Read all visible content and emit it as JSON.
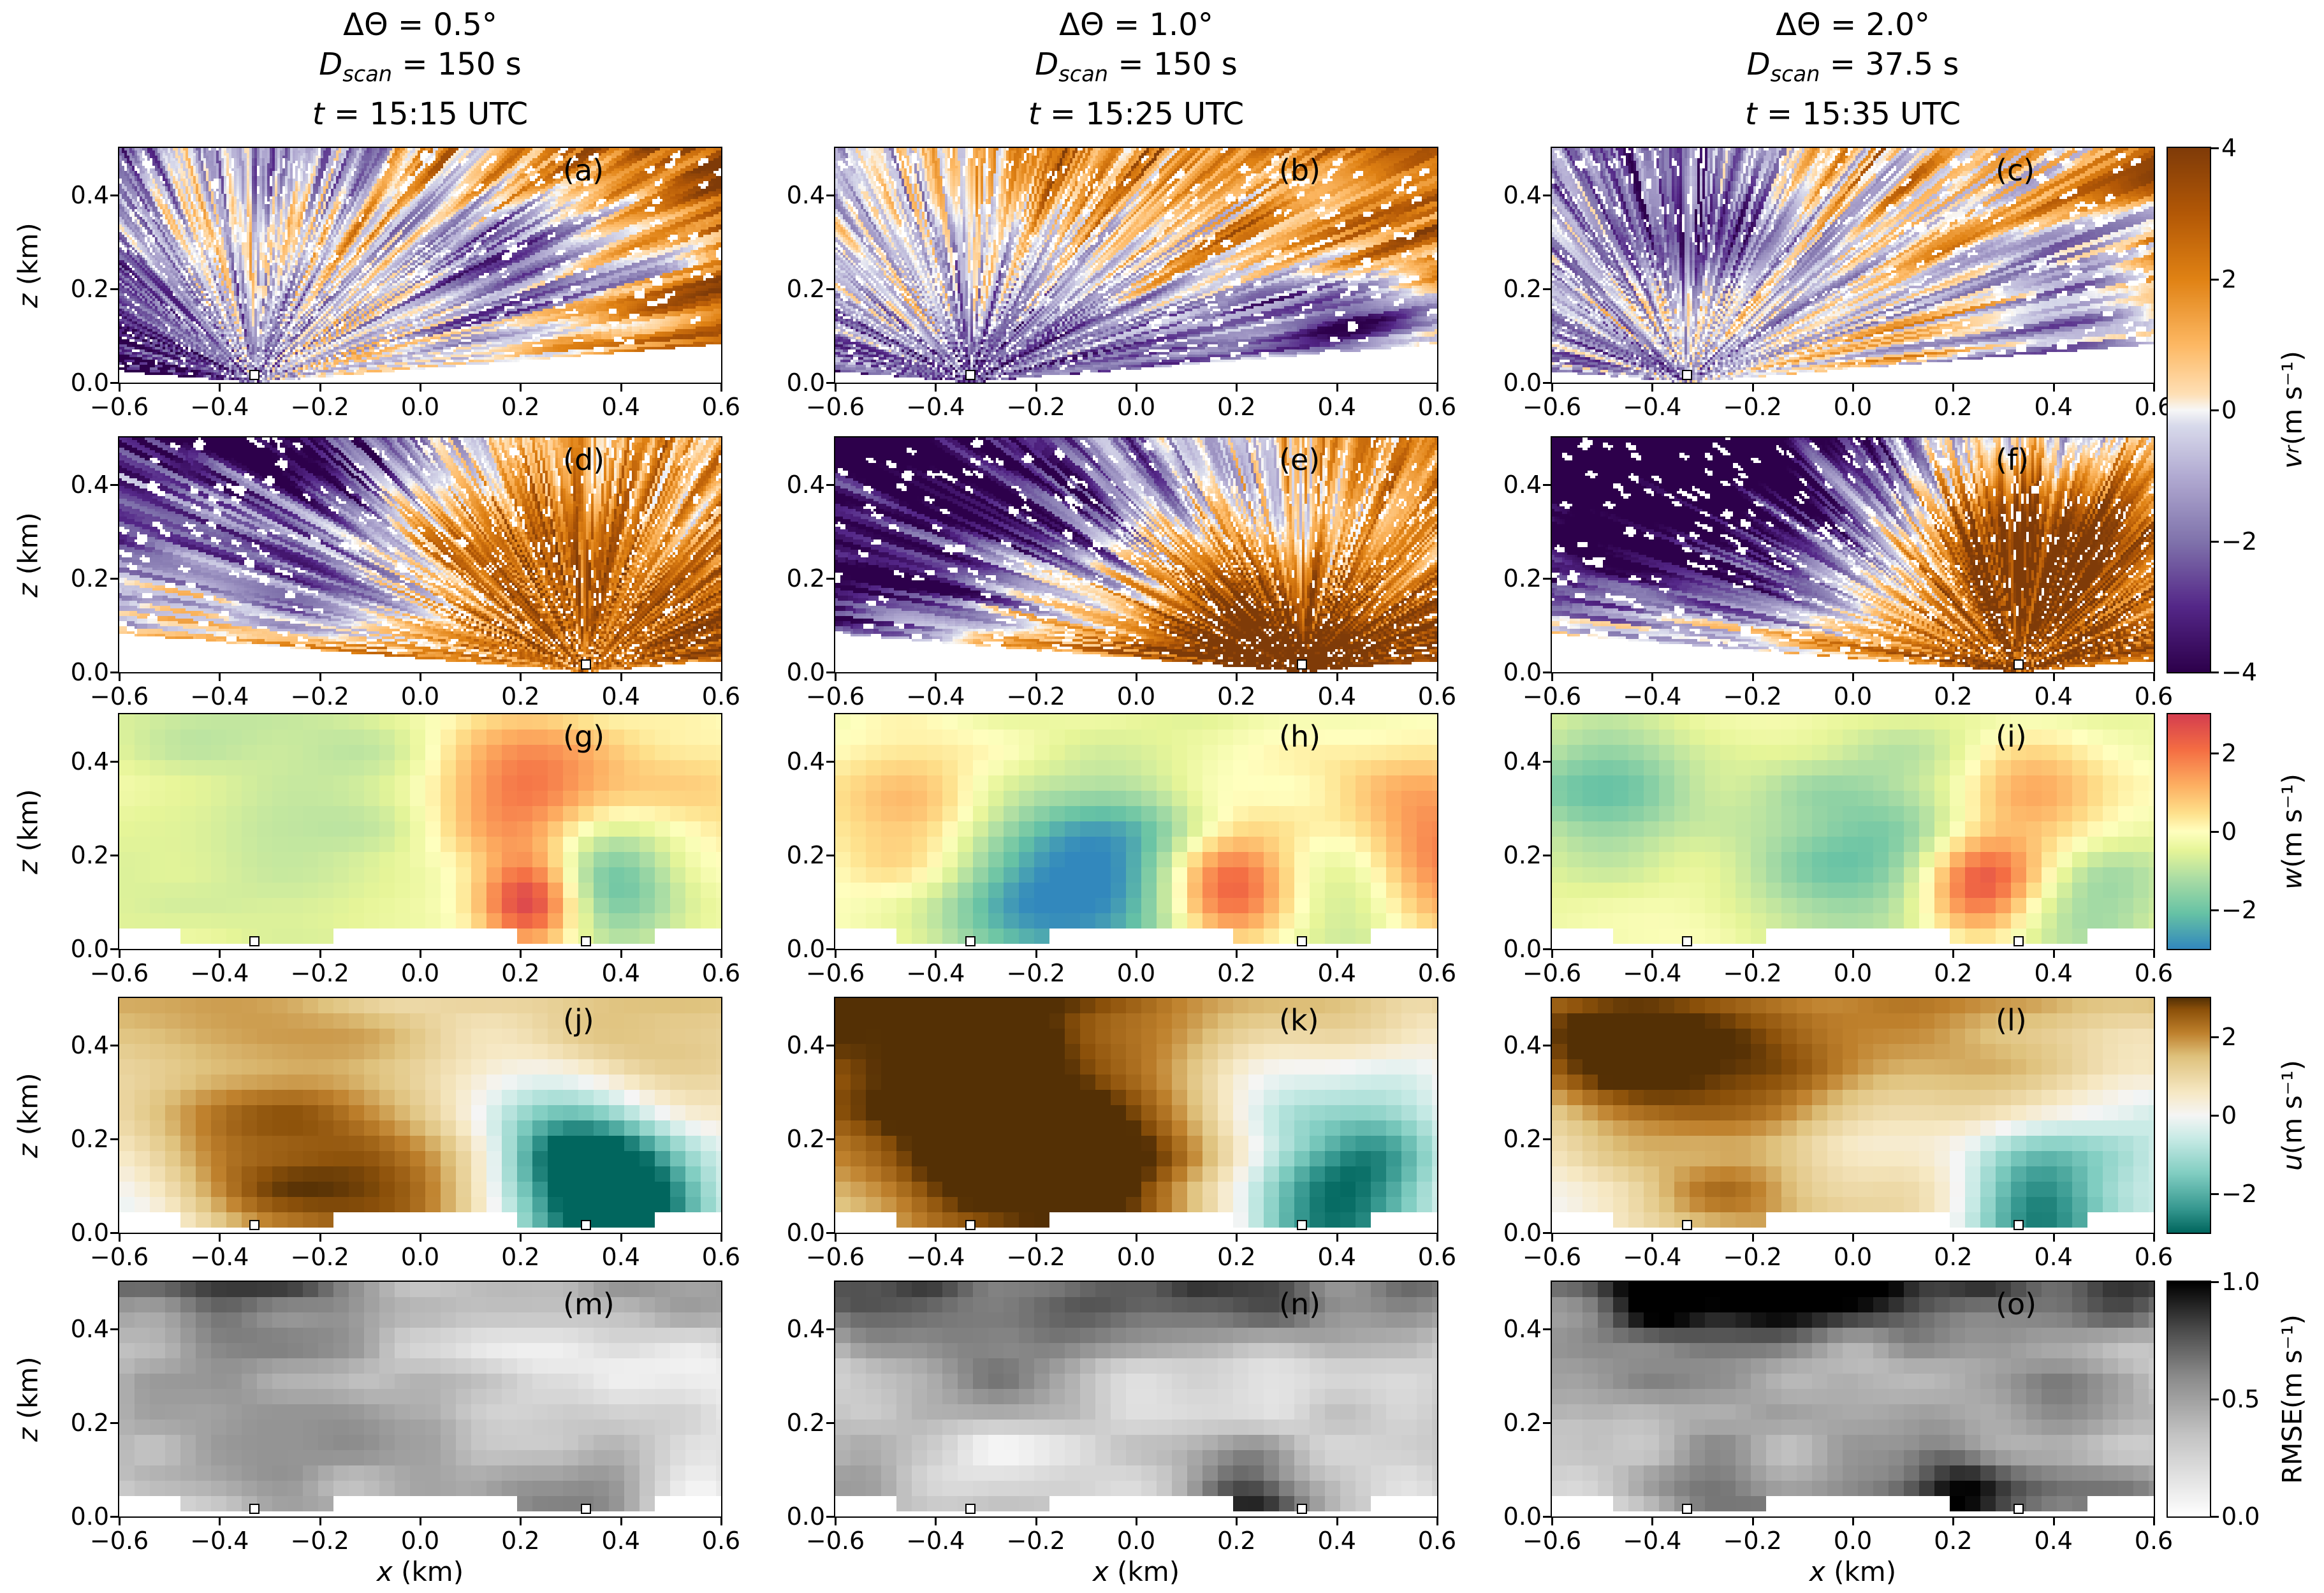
{
  "figure": {
    "background": "#ffffff"
  },
  "labels": {
    "d_var": "D",
    "d_sub": "scan",
    "t_var": "t",
    "x_var": "x",
    "x_unit": " (km)",
    "z_var": "z",
    "z_unit": " (km)"
  },
  "chart_data": {
    "type": "heatmap",
    "description": "5x3 grid of radar RHI cross-section heatmaps: rows show radial velocity from radar 1, radial velocity from radar 2, retrieved w, retrieved u, and RMSE; columns show three scan configurations.",
    "x_axis": {
      "label": "x (km)",
      "range": [
        -0.6,
        0.6
      ],
      "ticks": [
        -0.6,
        -0.4,
        -0.2,
        0.0,
        0.2,
        0.4,
        0.6
      ],
      "ticklabels": [
        "−0.6",
        "−0.4",
        "−0.2",
        "0.0",
        "0.2",
        "0.4",
        "0.6"
      ]
    },
    "y_axis": {
      "label": "z (km)",
      "range": [
        0,
        0.5
      ],
      "ticks": [
        0.0,
        0.2,
        0.4
      ],
      "ticklabels": [
        "0.0",
        "0.2",
        "0.4"
      ]
    },
    "columns": [
      {
        "delta_theta": "ΔΘ = 0.5°",
        "d_scan": "150 s",
        "d_scan_rest": " = 150 s",
        "time": "15:15 UTC",
        "time_rest": " = 15:15 UTC"
      },
      {
        "delta_theta": "ΔΘ = 1.0°",
        "d_scan": "150 s",
        "d_scan_rest": " = 150 s",
        "time": "15:25 UTC",
        "time_rest": " = 15:25 UTC"
      },
      {
        "delta_theta": "ΔΘ = 2.0°",
        "d_scan": "37.5 s",
        "d_scan_rest": " = 37.5 s",
        "time": "15:35 UTC",
        "time_rest": " = 15:35 UTC"
      }
    ],
    "rows": [
      {
        "variable": "v_r",
        "kind": "fan",
        "colormap": "PuOr_r",
        "range": [
          -4,
          4
        ],
        "radars": [
          -0.33
        ]
      },
      {
        "variable": "v_r",
        "kind": "fan",
        "colormap": "PuOr_r",
        "range": [
          -4,
          4
        ],
        "radars": [
          0.33
        ]
      },
      {
        "variable": "w",
        "kind": "grid",
        "colormap": "Spectral_r",
        "range": [
          -3,
          3
        ],
        "radars": [
          -0.33,
          0.33
        ]
      },
      {
        "variable": "u",
        "kind": "grid",
        "colormap": "BrBG_r",
        "range": [
          -3,
          3
        ],
        "radars": [
          -0.33,
          0.33
        ]
      },
      {
        "variable": "RMSE",
        "kind": "grid",
        "colormap": "Greys",
        "range": [
          0,
          1
        ],
        "radars": [
          -0.33,
          0.33
        ]
      }
    ],
    "panels": [
      {
        "letter": "(a)",
        "row": 0,
        "col": 0,
        "appearance": {
          "seed": 11,
          "trend": [
            2.2,
            0.9
          ],
          "bg": 0,
          "namp": 0,
          "tb": 0,
          "blobs": [
            [
              0.12,
              0.2,
              0.12,
              -2.0
            ]
          ]
        }
      },
      {
        "letter": "(b)",
        "row": 0,
        "col": 1,
        "appearance": {
          "seed": 22,
          "trend": [
            2.0,
            0.9
          ],
          "bg": 0,
          "namp": 0,
          "tb": 0,
          "blobs": [
            [
              0.42,
              0.07,
              0.13,
              -3.5
            ]
          ]
        }
      },
      {
        "letter": "(c)",
        "row": 0,
        "col": 2,
        "appearance": {
          "seed": 33,
          "trend": [
            1.6,
            0.3
          ],
          "bg": 0,
          "namp": 0,
          "tb": 0,
          "blobs": [
            [
              -0.35,
              0.42,
              0.16,
              -2.6
            ],
            [
              0.45,
              0.12,
              0.12,
              -2.2
            ]
          ]
        }
      },
      {
        "letter": "(d)",
        "row": 1,
        "col": 0,
        "appearance": {
          "seed": 44,
          "trend": [
            1.8,
            -0.7
          ],
          "bg": 0,
          "namp": 0,
          "tb": 0,
          "blobs": [
            [
              0.18,
              0.22,
              0.16,
              2.2
            ],
            [
              -0.4,
              0.38,
              0.22,
              -1.6
            ]
          ]
        }
      },
      {
        "letter": "(e)",
        "row": 1,
        "col": 1,
        "appearance": {
          "seed": 55,
          "trend": [
            2.2,
            -1.1
          ],
          "bg": 0,
          "namp": 0,
          "tb": 0,
          "blobs": [
            [
              0.2,
              0.12,
              0.16,
              2.4
            ],
            [
              -0.35,
              0.4,
              0.28,
              -1.8
            ]
          ]
        }
      },
      {
        "letter": "(f)",
        "row": 1,
        "col": 2,
        "appearance": {
          "seed": 66,
          "trend": [
            2.4,
            -1.4
          ],
          "bg": 0,
          "namp": 0,
          "tb": 0,
          "blobs": [
            [
              0.33,
              0.28,
              0.16,
              2.2
            ],
            [
              -0.3,
              0.42,
              0.28,
              -2.2
            ]
          ]
        }
      },
      {
        "letter": "(g)",
        "row": 2,
        "col": 0,
        "appearance": {
          "seed": 77,
          "trend": [
            0,
            0
          ],
          "bg": -0.25,
          "namp": 0.7,
          "tb": 0,
          "blobs": [
            [
              0.2,
              0.34,
              0.13,
              2.4
            ],
            [
              0.22,
              0.1,
              0.07,
              3.2
            ],
            [
              0.38,
              0.14,
              0.1,
              -2.0
            ],
            [
              -0.3,
              0.25,
              0.3,
              -0.6
            ],
            [
              0.55,
              0.3,
              0.15,
              0.8
            ]
          ]
        }
      },
      {
        "letter": "(h)",
        "row": 2,
        "col": 1,
        "appearance": {
          "seed": 88,
          "trend": [
            0,
            0
          ],
          "bg": -0.2,
          "namp": 0.7,
          "tb": 0,
          "blobs": [
            [
              -0.05,
              0.17,
              0.14,
              -2.6
            ],
            [
              -0.25,
              0.1,
              0.12,
              -1.5
            ],
            [
              0.18,
              0.13,
              0.09,
              3.0
            ],
            [
              0.6,
              0.2,
              0.13,
              2.2
            ],
            [
              -0.45,
              0.27,
              0.1,
              1.3
            ],
            [
              0.45,
              0.12,
              0.1,
              -1.2
            ]
          ]
        }
      },
      {
        "letter": "(i)",
        "row": 2,
        "col": 2,
        "appearance": {
          "seed": 99,
          "trend": [
            0,
            0
          ],
          "bg": -0.15,
          "namp": 0.7,
          "tb": 0,
          "blobs": [
            [
              0.0,
              0.25,
              0.2,
              -2.0
            ],
            [
              0.25,
              0.13,
              0.08,
              3.2
            ],
            [
              0.35,
              0.32,
              0.1,
              1.6
            ],
            [
              -0.5,
              0.3,
              0.13,
              -1.6
            ],
            [
              0.5,
              0.1,
              0.09,
              -1.2
            ],
            [
              -0.15,
              0.45,
              0.2,
              0.6
            ]
          ]
        }
      },
      {
        "letter": "(j)",
        "row": 3,
        "col": 0,
        "appearance": {
          "seed": 111,
          "trend": [
            0,
            2.0
          ],
          "bg": -0.3,
          "namp": 1.0,
          "tb": 0,
          "blobs": [
            [
              -0.3,
              0.07,
              0.18,
              2.2
            ],
            [
              0.05,
              0.06,
              0.16,
              1.8
            ],
            [
              0.3,
              0.13,
              0.12,
              -3.2
            ],
            [
              0.42,
              0.05,
              0.1,
              -2.6
            ],
            [
              0.15,
              0.28,
              0.15,
              -1.4
            ],
            [
              -0.55,
              0.1,
              0.12,
              -0.8
            ]
          ]
        }
      },
      {
        "letter": "(k)",
        "row": 3,
        "col": 1,
        "appearance": {
          "seed": 122,
          "trend": [
            0,
            2.4
          ],
          "bg": 0.1,
          "namp": 1.1,
          "tb": 0,
          "blobs": [
            [
              -0.3,
              0.09,
              0.22,
              2.4
            ],
            [
              0.02,
              0.08,
              0.2,
              2.2
            ],
            [
              0.38,
              0.08,
              0.13,
              -3.8
            ],
            [
              0.52,
              0.2,
              0.1,
              -2.0
            ],
            [
              0.2,
              0.3,
              0.13,
              -1.6
            ],
            [
              0.6,
              0.45,
              0.12,
              -1.6
            ]
          ]
        }
      },
      {
        "letter": "(l)",
        "row": 3,
        "col": 2,
        "appearance": {
          "seed": 133,
          "trend": [
            0,
            2.2
          ],
          "bg": 0.0,
          "namp": 1.1,
          "tb": 0,
          "blobs": [
            [
              -0.2,
              0.08,
              0.2,
              2.2
            ],
            [
              0.18,
              0.06,
              0.14,
              1.8
            ],
            [
              0.35,
              0.07,
              0.11,
              -3.4
            ],
            [
              0.05,
              0.22,
              0.15,
              -1.4
            ],
            [
              0.6,
              0.3,
              0.13,
              -1.4
            ],
            [
              -0.45,
              0.45,
              0.15,
              0.8
            ]
          ]
        }
      },
      {
        "letter": "(m)",
        "row": 4,
        "col": 0,
        "appearance": {
          "seed": 144,
          "trend": [
            0,
            0
          ],
          "bg": 0.3,
          "namp": 0.5,
          "tb": 0.35,
          "blobs": [
            [
              0.25,
              0.05,
              0.1,
              0.35
            ],
            [
              0.4,
              0.15,
              0.12,
              0.2
            ]
          ]
        }
      },
      {
        "letter": "(n)",
        "row": 4,
        "col": 1,
        "appearance": {
          "seed": 155,
          "trend": [
            0,
            0
          ],
          "bg": 0.33,
          "namp": 0.5,
          "tb": 0.55,
          "blobs": [
            [
              0.2,
              0.05,
              0.09,
              0.5
            ],
            [
              -0.3,
              0.44,
              0.18,
              0.25
            ]
          ]
        }
      },
      {
        "letter": "(o)",
        "row": 4,
        "col": 2,
        "appearance": {
          "seed": 166,
          "trend": [
            0,
            0
          ],
          "bg": 0.36,
          "namp": 0.5,
          "tb": 0.7,
          "blobs": [
            [
              0.2,
              0.07,
              0.09,
              0.5
            ],
            [
              -0.3,
              0.44,
              0.2,
              0.3
            ],
            [
              0.45,
              0.25,
              0.12,
              0.25
            ]
          ]
        }
      }
    ],
    "colorbars": [
      {
        "id": "vr",
        "var": "v",
        "sub": "r",
        "italic": true,
        "unit": " (m s⁻¹)",
        "colormap": "PuOr_r",
        "range": [
          -4,
          4
        ],
        "ticks": [
          {
            "label": "4",
            "v": 4
          },
          {
            "label": "2",
            "v": 2
          },
          {
            "label": "0",
            "v": 0
          },
          {
            "label": "−2",
            "v": -2
          },
          {
            "label": "−4",
            "v": -4
          }
        ]
      },
      {
        "id": "w",
        "var": "w",
        "sub": "",
        "italic": true,
        "unit": " (m s⁻¹)",
        "colormap": "Spectral_r",
        "range": [
          -3,
          3
        ],
        "ticks": [
          {
            "label": "2",
            "v": 2
          },
          {
            "label": "0",
            "v": 0
          },
          {
            "label": "−2",
            "v": -2
          }
        ]
      },
      {
        "id": "u",
        "var": "u",
        "sub": "",
        "italic": true,
        "unit": " (m s⁻¹)",
        "colormap": "BrBG_r",
        "range": [
          -3,
          3
        ],
        "ticks": [
          {
            "label": "2",
            "v": 2
          },
          {
            "label": "0",
            "v": 0
          },
          {
            "label": "−2",
            "v": -2
          }
        ]
      },
      {
        "id": "rmse",
        "var": "RMSE",
        "sub": "",
        "italic": false,
        "unit": " (m s⁻¹)",
        "colormap": "Greys",
        "range": [
          0,
          1
        ],
        "ticks": [
          {
            "label": "1.0",
            "v": 1
          },
          {
            "label": "0.5",
            "v": 0.5
          },
          {
            "label": "0.0",
            "v": 0
          }
        ]
      }
    ],
    "colormaps": {
      "PuOr_r": [
        [
          0,
          "#2d004b"
        ],
        [
          0.125,
          "#542788"
        ],
        [
          0.25,
          "#8073ac"
        ],
        [
          0.375,
          "#b2abd2"
        ],
        [
          0.47,
          "#d8daeb"
        ],
        [
          0.5,
          "#f7f7f7"
        ],
        [
          0.53,
          "#fee0b6"
        ],
        [
          0.625,
          "#fdb863"
        ],
        [
          0.75,
          "#e08214"
        ],
        [
          0.875,
          "#b35806"
        ],
        [
          1,
          "#7f3b08"
        ]
      ],
      "Spectral_r": [
        [
          0,
          "#3288bd"
        ],
        [
          0.15,
          "#66c2a5"
        ],
        [
          0.3,
          "#abdda4"
        ],
        [
          0.42,
          "#e6f598"
        ],
        [
          0.5,
          "#ffffbf"
        ],
        [
          0.58,
          "#fee08b"
        ],
        [
          0.7,
          "#fdae61"
        ],
        [
          0.85,
          "#f46d43"
        ],
        [
          1,
          "#d53e4f"
        ]
      ],
      "BrBG_r": [
        [
          0,
          "#01665e"
        ],
        [
          0.1,
          "#35978f"
        ],
        [
          0.25,
          "#80cdc1"
        ],
        [
          0.4,
          "#c7eae5"
        ],
        [
          0.5,
          "#f5f5f5"
        ],
        [
          0.6,
          "#f6e8c3"
        ],
        [
          0.75,
          "#dfc27d"
        ],
        [
          0.85,
          "#bf812d"
        ],
        [
          0.95,
          "#8c510a"
        ],
        [
          1,
          "#543005"
        ]
      ],
      "Greys": [
        [
          0,
          "#ffffff"
        ],
        [
          0.35,
          "#c3c3c3"
        ],
        [
          0.6,
          "#8a8a8a"
        ],
        [
          0.8,
          "#4a4a4a"
        ],
        [
          1,
          "#000000"
        ]
      ]
    }
  }
}
